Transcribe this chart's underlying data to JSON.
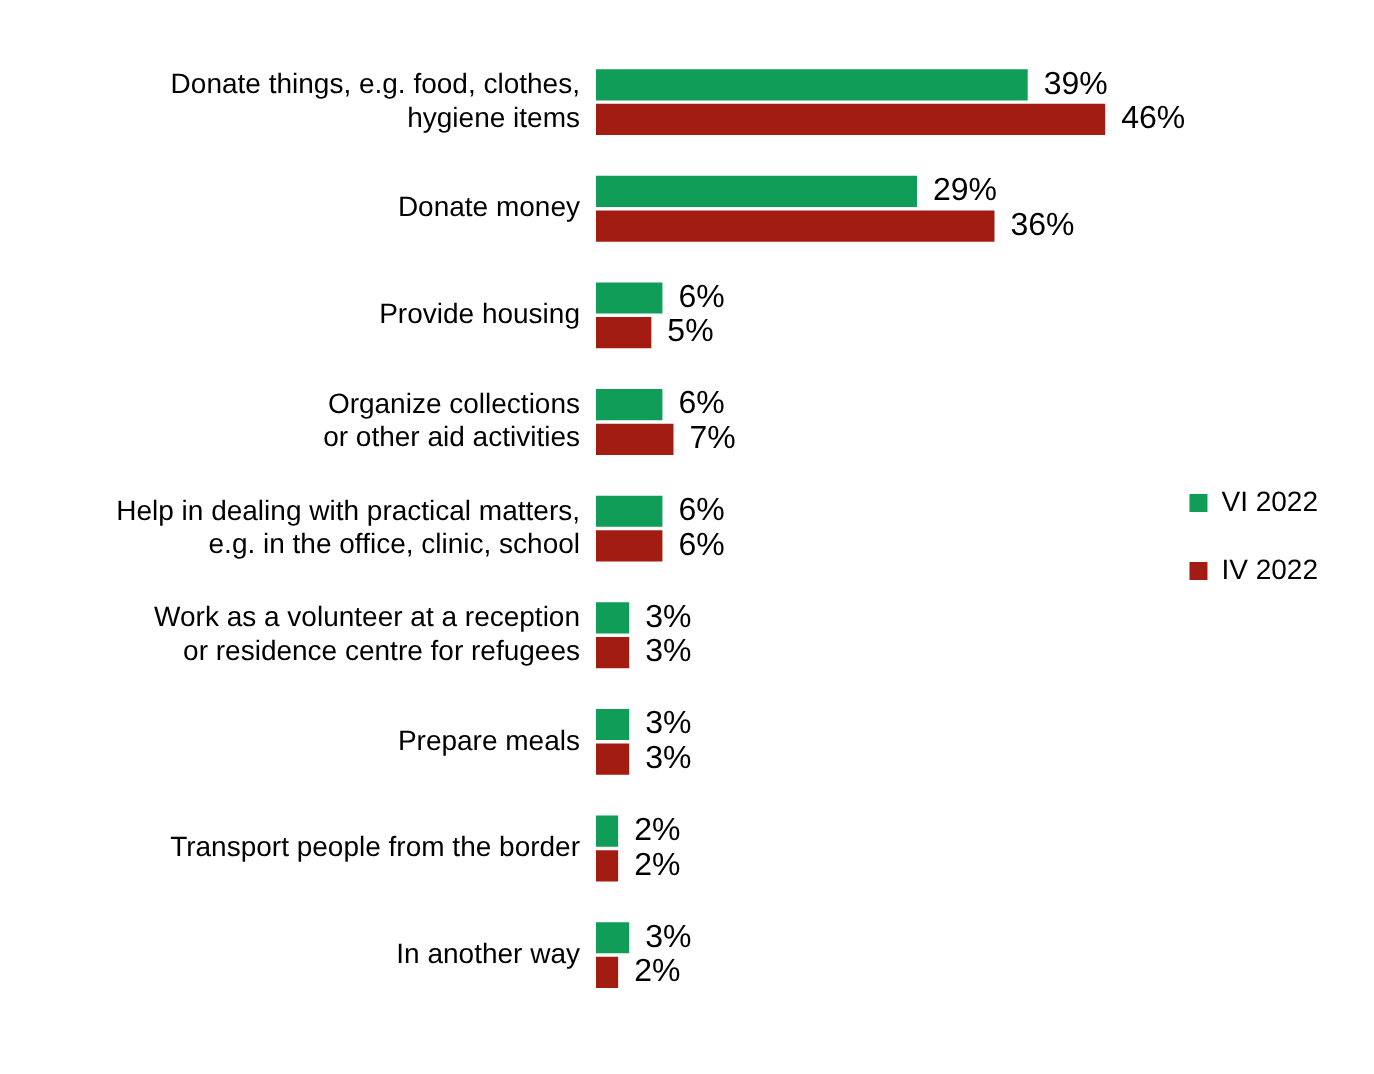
{
  "chart_data": {
    "type": "bar",
    "orientation": "horizontal",
    "categories": [
      "Donate things, e.g. food, clothes,\nhygiene items",
      "Donate money",
      "Provide housing",
      "Organize collections\nor other aid activities",
      "Help in dealing with practical matters,\ne.g. in the office, clinic, school",
      "Work as a volunteer at a reception\nor residence centre for refugees",
      "Prepare meals",
      "Transport people from the border",
      "In another way"
    ],
    "series": [
      {
        "name": "VI 2022",
        "color": "#0f9d58",
        "values": [
          39,
          29,
          6,
          6,
          6,
          3,
          3,
          2,
          3
        ],
        "value_labels": [
          "39%",
          "29%",
          "6%",
          "6%",
          "6%",
          "3%",
          "3%",
          "2%",
          "3%"
        ]
      },
      {
        "name": "IV 2022",
        "color": "#a31c12",
        "values": [
          46,
          36,
          5,
          7,
          6,
          3,
          3,
          2,
          2
        ],
        "value_labels": [
          "46%",
          "36%",
          "5%",
          "7%",
          "6%",
          "3%",
          "3%",
          "2%",
          "2%"
        ]
      }
    ],
    "legend": "right",
    "grid": false
  }
}
